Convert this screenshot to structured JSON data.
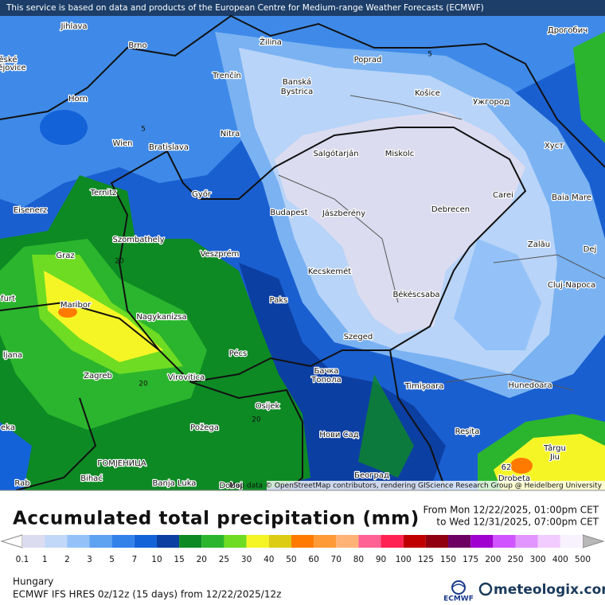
{
  "header": {
    "notice": "This service is based on data and products of the European Centre for Medium-range Weather Forecasts (ECMWF)"
  },
  "map": {
    "cities": [
      "Jihlava",
      "Brno",
      "Žilina",
      "Poprad",
      "Дрогобич",
      "ěské",
      "ějovice",
      "Trenčín",
      "Banská",
      "Bystrica",
      "Košice",
      "Ужгород",
      "Horn",
      "Nitra",
      "Wien",
      "Bratislava",
      "Salgótarján",
      "Miskolc",
      "Хуст",
      "Ternitz",
      "Győr",
      "Carei",
      "Baia Mare",
      "Eisenerz",
      "Budapest",
      "Jászberény",
      "Debrecen",
      "Szombathely",
      "Zalău",
      "Graz",
      "Veszprém",
      "Dej",
      "Kecskemét",
      "Cluj-Napoca",
      "furt",
      "Maribor",
      "Paks",
      "Békéscsaba",
      "Nagykanizsa",
      "Pécs",
      "Szeged",
      "ljana",
      "Zagreb",
      "Virovitica",
      "Бачка",
      "Топола",
      "Timișoara",
      "Hunedoara",
      "Osijek",
      "eka",
      "Požega",
      "Reșița",
      "Нови Сад",
      "Târgu",
      "Jiu",
      "ГОМЈЕНИЦА",
      "Београд",
      "Bihać",
      "Banja Luka",
      "Doboj",
      "Rab",
      "Drobeta"
    ],
    "contour_labels": [
      5,
      5,
      20,
      20,
      20,
      20
    ],
    "max_label": 62,
    "attribution": "Map data © OpenStreetMap contributors, rendering GIScience Research Group @ Heidelberg University"
  },
  "legend": {
    "title": "Accumulated total precipitation (mm)",
    "from": "From Mon 12/22/2025, 01:00pm CET",
    "to": "to Wed 12/31/2025, 07:00pm CET",
    "scale": [
      0.1,
      1,
      2,
      3,
      5,
      7,
      10,
      15,
      20,
      25,
      30,
      40,
      50,
      60,
      70,
      80,
      90,
      100,
      125,
      150,
      175,
      200,
      250,
      300,
      400,
      500
    ],
    "colors": [
      "#dcdcf0",
      "#c2d8f8",
      "#94c2f8",
      "#5ea2f2",
      "#3382ea",
      "#1462d8",
      "#0c3fa2",
      "#0e8a24",
      "#2bb52e",
      "#6edc22",
      "#f5f525",
      "#dccc14",
      "#ff7a00",
      "#ff9a36",
      "#ffb276",
      "#ff6294",
      "#ff2252",
      "#c00000",
      "#900010",
      "#6e0064",
      "#a000d0",
      "#d054ff",
      "#e294ff",
      "#f2ccff",
      "#f8f2ff"
    ]
  },
  "footer": {
    "region": "Hungary",
    "model": "ECMWF IFS HRES 0z/12z (15 days) from 12/22/2025/12z",
    "ecmwf": "ECMWF",
    "brand": "meteologix.com"
  }
}
